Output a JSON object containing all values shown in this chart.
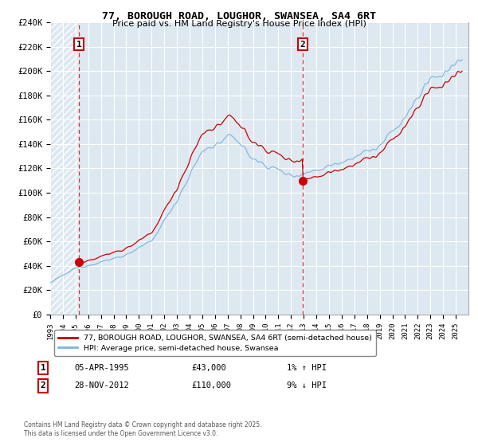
{
  "title_line1": "77, BOROUGH ROAD, LOUGHOR, SWANSEA, SA4 6RT",
  "title_line2": "Price paid vs. HM Land Registry's House Price Index (HPI)",
  "legend_line1": "77, BOROUGH ROAD, LOUGHOR, SWANSEA, SA4 6RT (semi-detached house)",
  "legend_line2": "HPI: Average price, semi-detached house, Swansea",
  "annotation1_label": "1",
  "annotation1_date": "05-APR-1995",
  "annotation1_price": "£43,000",
  "annotation1_hpi": "1% ↑ HPI",
  "annotation2_label": "2",
  "annotation2_date": "28-NOV-2012",
  "annotation2_price": "£110,000",
  "annotation2_hpi": "9% ↓ HPI",
  "footer": "Contains HM Land Registry data © Crown copyright and database right 2025.\nThis data is licensed under the Open Government Licence v3.0.",
  "sale1_year": 1995.27,
  "sale1_price": 43000,
  "sale2_year": 2012.91,
  "sale2_price": 110000,
  "hpi_color": "#7ab4e0",
  "price_color": "#cc0000",
  "vline_color": "#cc0000",
  "ylim_max": 240000,
  "ylim_min": 0,
  "xmin": 1993,
  "xmax": 2026
}
